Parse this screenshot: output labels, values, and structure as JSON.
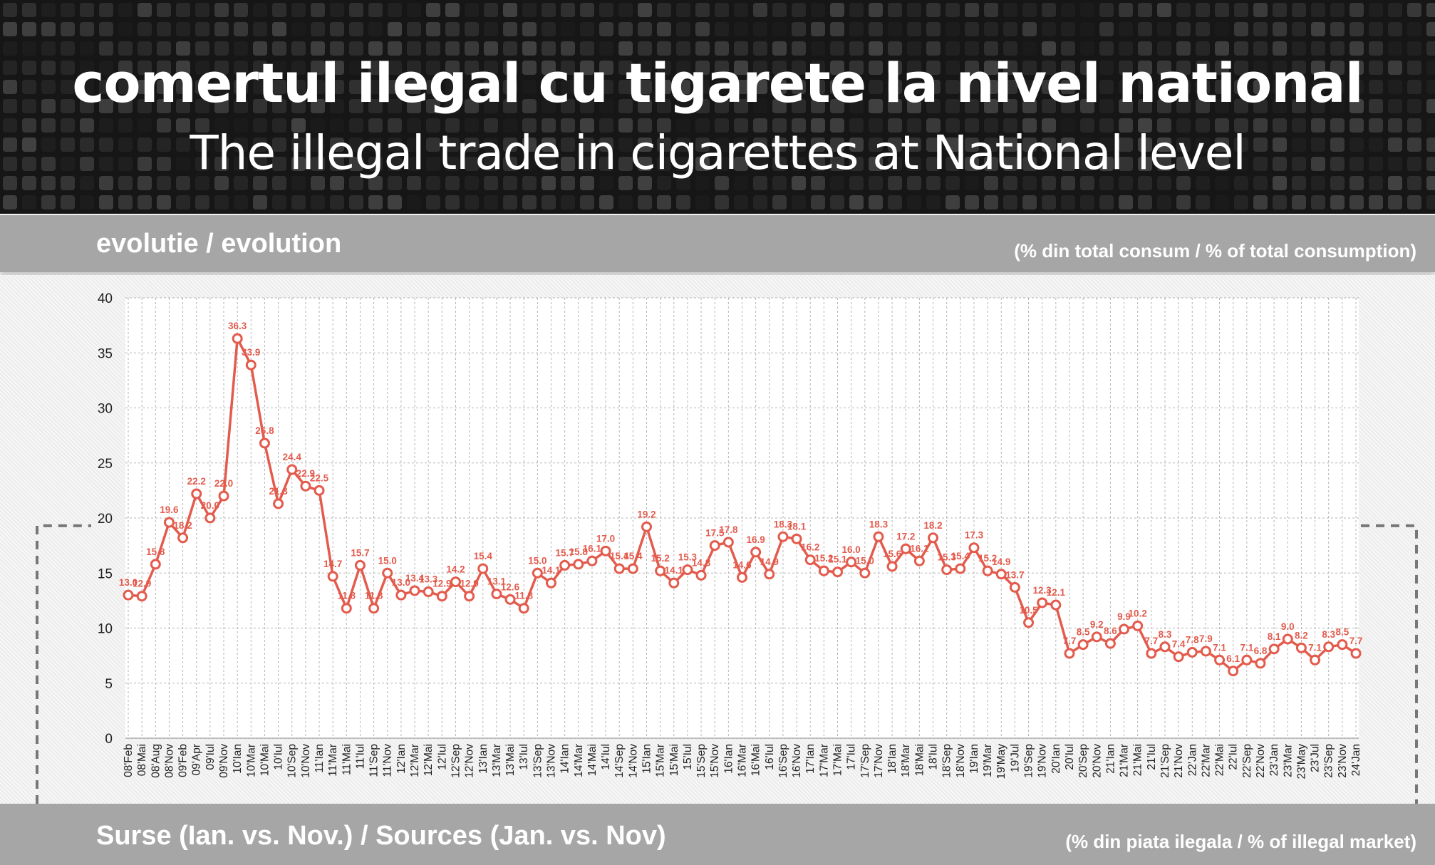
{
  "header": {
    "title_ro": "comertul ilegal cu tigarete la nivel national",
    "title_en": "The illegal trade in cigarettes at National level"
  },
  "top_bar": {
    "left": "evolutie / evolution",
    "right": "(% din total consum / % of total consumption)"
  },
  "bottom_bar": {
    "left": "Surse (Ian. vs. Nov.) / Sources (Jan. vs. Nov)",
    "right": "(% din piata ilegala / % of illegal market)"
  },
  "colors": {
    "series": "#e35b4d",
    "banner": "#161616",
    "bar": "#a6a6a6"
  },
  "chart_data": {
    "type": "line",
    "ylim": [
      0,
      40
    ],
    "yticks": [
      0,
      5,
      10,
      15,
      20,
      25,
      30,
      35,
      40
    ],
    "grid": true,
    "categories": [
      "08'Feb",
      "08'Mai",
      "08'Aug",
      "08'Nov",
      "09'Feb",
      "09'Apr",
      "09'Iul",
      "09'Nov",
      "10'Ian",
      "10'Mar",
      "10'Mai",
      "10'Iul",
      "10'Sep",
      "10'Nov",
      "11'Ian",
      "11'Mar",
      "11'Mai",
      "11'Iul",
      "11'Sep",
      "11'Nov",
      "12'Ian",
      "12'Mar",
      "12'Mai",
      "12'Iul",
      "12'Sep",
      "12'Nov",
      "13'Ian",
      "13'Mar",
      "13'Mai",
      "13'Iul",
      "13'Sep",
      "13'Nov",
      "14'Ian",
      "14'Mar",
      "14'Mai",
      "14'Iul",
      "14'Sep",
      "14'Nov",
      "15'Ian",
      "15'Mar",
      "15'Mai",
      "15'Iul",
      "15'Sep",
      "15'Nov",
      "16'Ian",
      "16'Mar",
      "16'Mai",
      "16'Iul",
      "16'Sep",
      "16'Nov",
      "17'Ian",
      "17'Mar",
      "17'Mai",
      "17'Iul",
      "17'Sep",
      "17'Nov",
      "18'Ian",
      "18'Mar",
      "18'Mai",
      "18'Iul",
      "18'Sep",
      "18'Nov",
      "19'Ian",
      "19'Mar",
      "19'May",
      "19'Jul",
      "19'Sep",
      "19'Nov",
      "20'Ian",
      "20'Iul",
      "20'Sep",
      "20'Nov",
      "21'Ian",
      "21'Mar",
      "21'Mai",
      "21'Iul",
      "21'Sep",
      "21'Nov",
      "22'Jan",
      "22'Mar",
      "22'Mai",
      "22'Iul",
      "22'Sep",
      "22'Nov",
      "23'Jan",
      "23'Mar",
      "23'May",
      "23'Jul",
      "23'Sep",
      "23'Nov",
      "24'Jan"
    ],
    "values": [
      13.0,
      12.9,
      15.8,
      19.6,
      18.2,
      22.2,
      20.0,
      22.0,
      36.3,
      33.9,
      26.8,
      21.3,
      24.4,
      22.9,
      22.5,
      14.7,
      11.8,
      15.7,
      11.8,
      15.0,
      13.0,
      13.4,
      13.3,
      12.9,
      14.2,
      12.9,
      15.4,
      13.1,
      12.6,
      11.8,
      15.0,
      14.1,
      15.7,
      15.8,
      16.1,
      17.0,
      15.4,
      15.4,
      19.2,
      15.2,
      14.1,
      15.3,
      14.8,
      17.5,
      17.8,
      14.6,
      16.9,
      14.9,
      18.3,
      18.1,
      16.2,
      15.2,
      15.1,
      16.0,
      15.0,
      18.3,
      15.6,
      17.2,
      16.1,
      18.2,
      15.3,
      15.4,
      17.3,
      15.2,
      14.9,
      13.7,
      10.5,
      12.3,
      12.1,
      7.7,
      8.5,
      9.2,
      8.6,
      9.9,
      10.2,
      7.7,
      8.3,
      7.4,
      7.8,
      7.9,
      7.1,
      6.1,
      7.1,
      6.8,
      8.1,
      9.0,
      8.2,
      7.1,
      8.3,
      8.5,
      7.7
    ],
    "labels": [
      "13.0",
      "12.9",
      "15.8",
      "19.6",
      "18.2",
      "22.2",
      "20.0",
      "22.0",
      "36.3",
      "33.9",
      "26.8",
      "21.3",
      "24.4",
      "22.9",
      "22.5",
      "14.7",
      "11.8",
      "15.7",
      "11.8",
      "15.0",
      "13.0",
      "13.4",
      "13.3",
      "12.9",
      "14.2",
      "12.9",
      "15.4",
      "13.1",
      "12.6",
      "11.8",
      "15.0",
      "14.1",
      "15.7",
      "15.8",
      "16.1",
      "17.0",
      "15.4",
      "15.4",
      "19.2",
      "15.2",
      "14.1",
      "15.3",
      "14.8",
      "17.5",
      "17.8",
      "14.6",
      "16.9",
      "14.9",
      "18.3",
      "18.1",
      "16.2",
      "15.2",
      "15.1",
      "16.0",
      "15.0",
      "18.3",
      "15.6",
      "17.2",
      "16.1",
      "18.2",
      "15.3",
      "15.4",
      "17.3",
      "15.2",
      "14.9",
      "13.7",
      "10.5",
      "12.3",
      "12.1",
      "7.7",
      "8.5",
      "9.2",
      "8.6",
      "9.9",
      "10.2",
      "7.7",
      "8.3",
      "7.4",
      "7.8",
      "7.9",
      "7.1",
      "6.1",
      "7.1",
      "6.8",
      "8.1",
      "9.0",
      "8.2",
      "7.1",
      "8.3",
      "8.5",
      "7.7"
    ]
  }
}
